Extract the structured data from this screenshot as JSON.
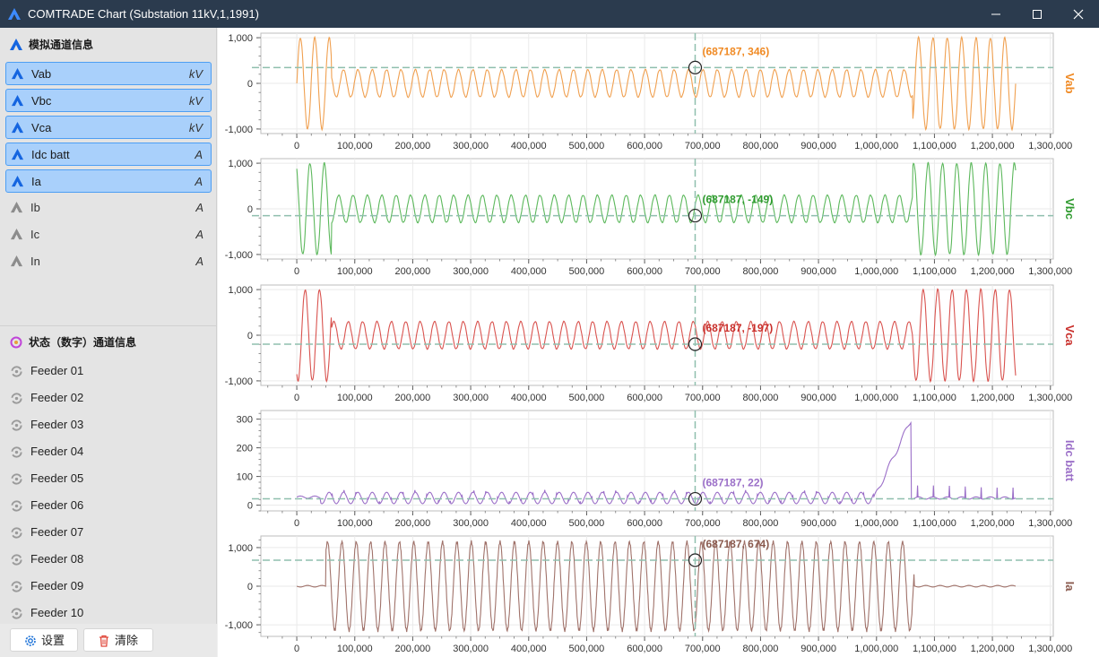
{
  "window": {
    "title": "COMTRADE Chart (Substation 11kV,1,1991)"
  },
  "analog_section": {
    "title": "模拟通道信息",
    "channels": [
      {
        "name": "Vab",
        "unit": "kV",
        "selected": true
      },
      {
        "name": "Vbc",
        "unit": "kV",
        "selected": true
      },
      {
        "name": "Vca",
        "unit": "kV",
        "selected": true
      },
      {
        "name": "Idc batt",
        "unit": "A",
        "selected": true
      },
      {
        "name": "Ia",
        "unit": "A",
        "selected": true
      },
      {
        "name": "Ib",
        "unit": "A",
        "selected": false
      },
      {
        "name": "Ic",
        "unit": "A",
        "selected": false
      },
      {
        "name": "In",
        "unit": "A",
        "selected": false
      }
    ]
  },
  "digital_section": {
    "title": "状态（数字）通道信息",
    "channels": [
      "Feeder 01",
      "Feeder 02",
      "Feeder 03",
      "Feeder 04",
      "Feeder 05",
      "Feeder 06",
      "Feeder 07",
      "Feeder 08",
      "Feeder 09",
      "Feeder 10"
    ]
  },
  "footer": {
    "settings_label": "设置",
    "clear_label": "清除"
  },
  "chart_data": [
    {
      "type": "line",
      "series_label": "Vab",
      "color": "#f0a050",
      "label_color": "#f08a24",
      "ylim": [
        -1100,
        1100
      ],
      "y_ticks": [
        "1,000",
        "0",
        "-1,000"
      ],
      "cursor_label": "(687187, 346)",
      "cursor": {
        "x": 687187,
        "y": 346
      },
      "x_ticks": [
        "0",
        "100,000",
        "200,000",
        "300,000",
        "400,000",
        "500,000",
        "600,000",
        "700,000",
        "800,000",
        "900,000",
        "1,000,000",
        "1,100,000",
        "1,200,000",
        "1,300,000"
      ],
      "xlim": [
        -62000,
        1305000
      ]
    },
    {
      "type": "line",
      "series_label": "Vbc",
      "color": "#5cb85c",
      "label_color": "#2e9a2e",
      "ylim": [
        -1100,
        1100
      ],
      "y_ticks": [
        "1,000",
        "0",
        "-1,000"
      ],
      "cursor_label": "(687187, -149)",
      "cursor": {
        "x": 687187,
        "y": -149
      },
      "x_ticks": [
        "0",
        "100,000",
        "200,000",
        "300,000",
        "400,000",
        "500,000",
        "600,000",
        "700,000",
        "800,000",
        "900,000",
        "1,000,000",
        "1,100,000",
        "1,200,000",
        "1,300,000"
      ],
      "xlim": [
        -62000,
        1305000
      ]
    },
    {
      "type": "line",
      "series_label": "Vca",
      "color": "#d9534f",
      "label_color": "#c9302c",
      "ylim": [
        -1100,
        1100
      ],
      "y_ticks": [
        "1,000",
        "0",
        "-1,000"
      ],
      "cursor_label": "(687187, -197)",
      "cursor": {
        "x": 687187,
        "y": -197
      },
      "x_ticks": [
        "0",
        "100,000",
        "200,000",
        "300,000",
        "400,000",
        "500,000",
        "600,000",
        "700,000",
        "800,000",
        "900,000",
        "1,000,000",
        "1,100,000",
        "1,200,000",
        "1,300,000"
      ],
      "xlim": [
        -62000,
        1305000
      ]
    },
    {
      "type": "line",
      "series_label": "Idc batt",
      "color": "#9b6fc8",
      "label_color": "#9b6fc8",
      "ylim": [
        -20,
        330
      ],
      "y_ticks": [
        "300",
        "200",
        "100",
        "0"
      ],
      "cursor_label": "(687187, 22)",
      "cursor": {
        "x": 687187,
        "y": 22
      },
      "x_ticks": [
        "0",
        "100,000",
        "200,000",
        "300,000",
        "400,000",
        "500,000",
        "600,000",
        "700,000",
        "800,000",
        "900,000",
        "1,000,000",
        "1,100,000",
        "1,200,000",
        "1,300,000"
      ],
      "xlim": [
        -62000,
        1305000
      ]
    },
    {
      "type": "line",
      "series_label": "Ia",
      "color": "#a0726a",
      "label_color": "#8a5a4e",
      "ylim": [
        -1300,
        1300
      ],
      "y_ticks": [
        "1,000",
        "0",
        "-1,000"
      ],
      "cursor_label": "(687187, 674)",
      "cursor": {
        "x": 687187,
        "y": 674
      },
      "x_ticks": [
        "0",
        "100,000",
        "200,000",
        "300,000",
        "400,000",
        "500,000",
        "600,000",
        "700,000",
        "800,000",
        "900,000",
        "1,000,000",
        "1,100,000",
        "1,200,000",
        "1,300,000"
      ],
      "xlim": [
        -62000,
        1305000
      ]
    }
  ]
}
